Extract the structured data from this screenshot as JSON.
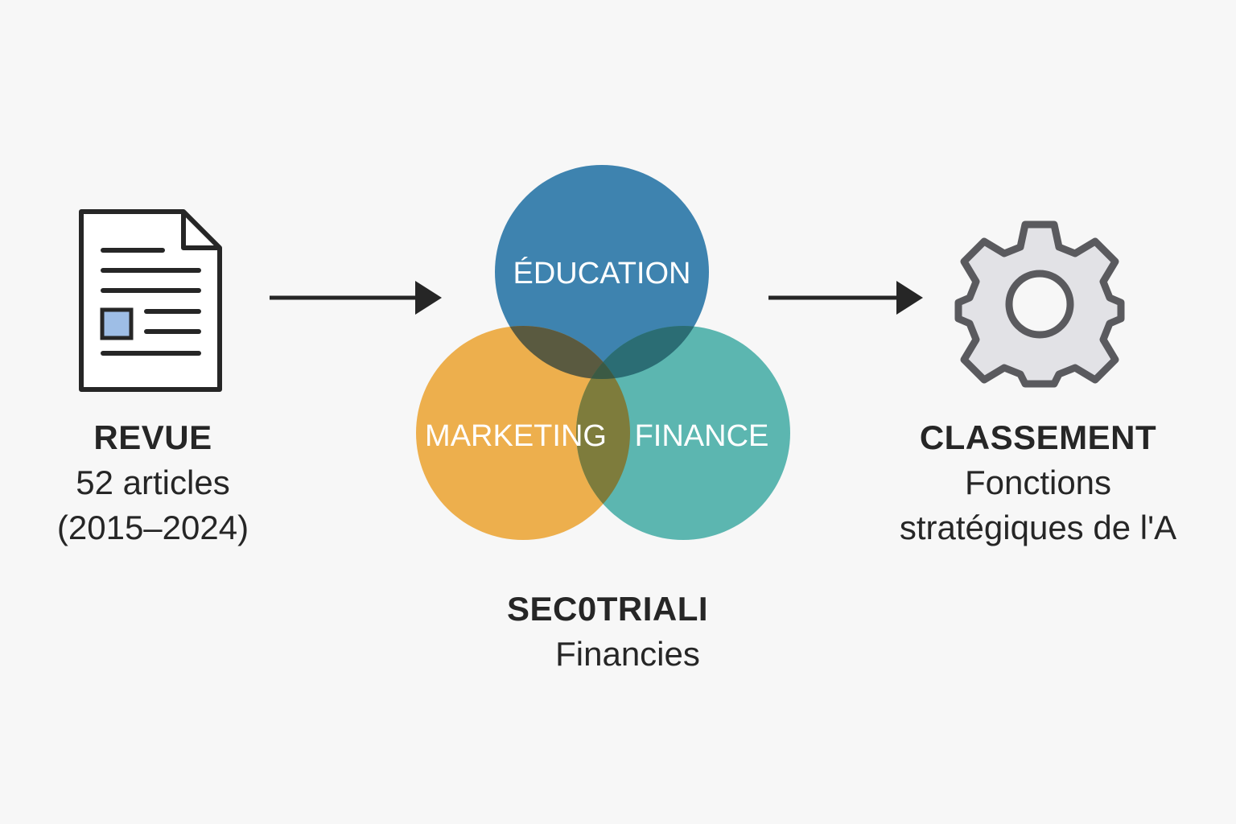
{
  "review": {
    "title": "REVUE",
    "line1": "52 articles",
    "line2": "(2015–2024)",
    "icon": "document-icon"
  },
  "sectors": {
    "circles": [
      {
        "label": "ÉDUCATION",
        "color": "#2e78a8"
      },
      {
        "label": "MARKETING",
        "color": "#eba63a"
      },
      {
        "label": "FINANCE",
        "color": "#47ada6"
      }
    ],
    "title": "SEC0TRIALI",
    "line1": "Financies"
  },
  "classification": {
    "title": "CLASSEMENT",
    "line1": "Fonctions",
    "line2": "stratégiques de l'A",
    "icon": "gear-icon"
  },
  "colors": {
    "stroke": "#262626",
    "doc_accent": "#9ebee6",
    "gear_fill": "#e2e2e6",
    "gear_stroke": "#5a5a5e",
    "background": "#f7f7f7"
  }
}
